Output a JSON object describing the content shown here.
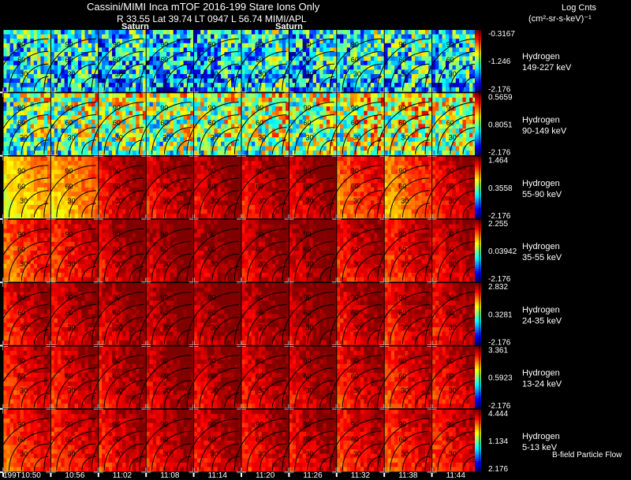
{
  "header": {
    "title": "Cassini/MIMI Inca mTOF  2016-199    Stare    Ions Only",
    "subtitle": "R        33.55 Lat 39.74 LT 0947  L       56.74  MIMI/APL",
    "units_title": "Log Cnts",
    "units_sub": "(cm²-sr-s-keV)⁻¹",
    "annotations": [
      "Saturn",
      "Saturn"
    ]
  },
  "footer": "B-field Particle Flow",
  "chart_data": {
    "type": "heatmap",
    "title": "Cassini/MIMI Inca mTOF  2016-199    Stare    Ions Only",
    "x_tick_labels": [
      "199T10:50",
      "10:56",
      "11:02",
      "11:08",
      "11:14",
      "11:20",
      "11:26",
      "11:32",
      "11:38",
      "11:44"
    ],
    "pitch_angle_contour_labels": [
      "30",
      "60",
      "90",
      "120"
    ],
    "panels": [
      {
        "species": "Hydrogen",
        "energy": "149-227 keV",
        "cmax": "-0.3167",
        "cmid": "-1.246",
        "cmin": "-2.176",
        "intensity": [
          0.35,
          0.33,
          0.3,
          0.28,
          0.3,
          0.35,
          0.32,
          0.34,
          0.36,
          0.32
        ]
      },
      {
        "species": "Hydrogen",
        "energy": "90-149 keV",
        "cmax": "0.5659",
        "cmid": "0.8051",
        "cmin": "-2.176",
        "intensity": [
          0.45,
          0.48,
          0.5,
          0.47,
          0.5,
          0.52,
          0.5,
          0.55,
          0.55,
          0.55
        ]
      },
      {
        "species": "Hydrogen",
        "energy": "55-90 keV",
        "cmax": "1.464",
        "cmid": "0.3558",
        "cmin": "-2.176",
        "intensity": [
          0.65,
          0.7,
          0.9,
          0.9,
          0.92,
          0.9,
          0.92,
          0.8,
          0.75,
          0.88
        ]
      },
      {
        "species": "Hydrogen",
        "energy": "35-55 keV",
        "cmax": "2.255",
        "cmid": "0.03942",
        "cmin": "-2.176",
        "intensity": [
          0.8,
          0.85,
          0.92,
          0.95,
          0.95,
          0.92,
          0.95,
          0.88,
          0.85,
          0.9
        ]
      },
      {
        "species": "Hydrogen",
        "energy": "24-35 keV",
        "cmax": "2.832",
        "cmid": "0.3281",
        "cmin": "-2.176",
        "intensity": [
          0.88,
          0.9,
          0.93,
          0.95,
          0.95,
          0.93,
          0.95,
          0.9,
          0.88,
          0.9
        ]
      },
      {
        "species": "Hydrogen",
        "energy": "13-24 keV",
        "cmax": "3.361",
        "cmid": "0.5923",
        "cmin": "-2.176",
        "intensity": [
          0.85,
          0.88,
          0.9,
          0.93,
          0.92,
          0.9,
          0.92,
          0.88,
          0.85,
          0.88
        ]
      },
      {
        "species": "Hydrogen",
        "energy": "5-13 keV",
        "cmax": "4.444",
        "cmid": "1.134",
        "cmin": "2.176",
        "intensity": [
          0.82,
          0.85,
          0.88,
          0.9,
          0.9,
          0.88,
          0.9,
          0.86,
          0.84,
          0.86
        ]
      }
    ]
  }
}
